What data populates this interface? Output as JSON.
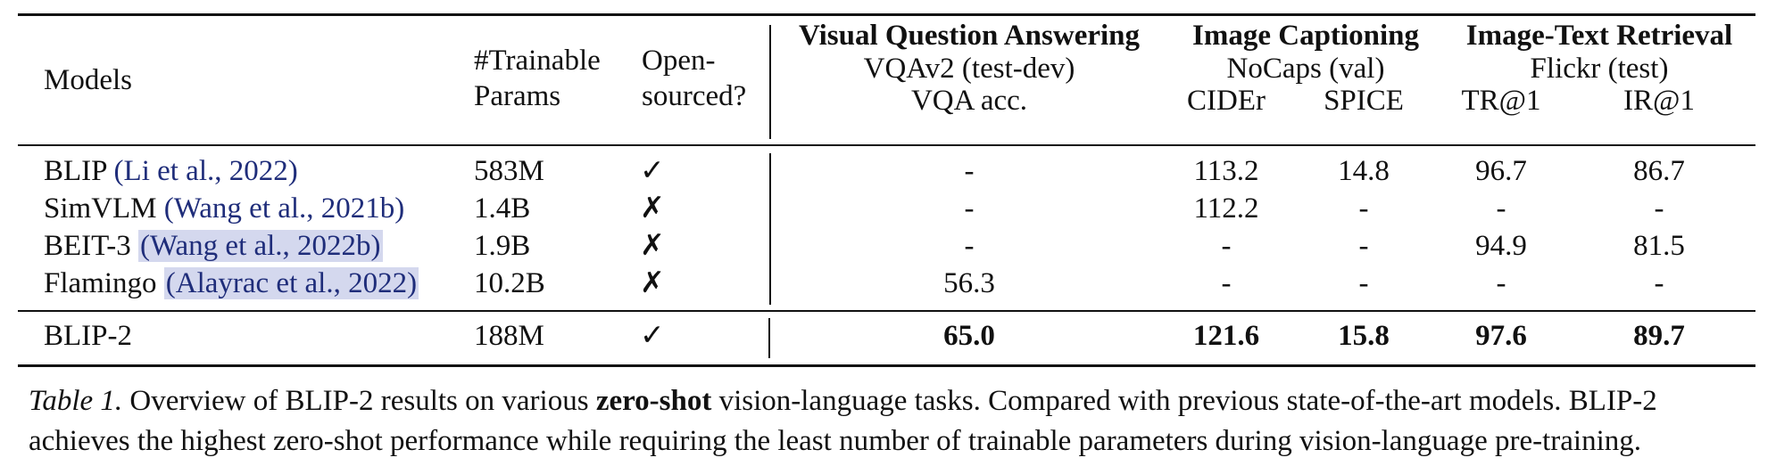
{
  "table": {
    "headers": {
      "models": "Models",
      "params_line1": "#Trainable",
      "params_line2": "Params",
      "open_line1": "Open-",
      "open_line2": "sourced?",
      "vqa_group": "Visual Question Answering",
      "vqa_dataset": "VQAv2 (test-dev)",
      "vqa_metric": "VQA acc.",
      "cap_group": "Image Captioning",
      "cap_dataset": "NoCaps (val)",
      "cap_metric1": "CIDEr",
      "cap_metric2": "SPICE",
      "ret_group": "Image-Text Retrieval",
      "ret_dataset": "Flickr (test)",
      "ret_metric1": "TR@1",
      "ret_metric2": "IR@1"
    },
    "rows": [
      {
        "model": "BLIP",
        "cite": "(Li et al., 2022)",
        "params": "583M",
        "open": "✓",
        "vqa": "-",
        "cider": "113.2",
        "spice": "14.8",
        "tr1": "96.7",
        "ir1": "86.7"
      },
      {
        "model": "SimVLM",
        "cite": "(Wang et al., 2021b)",
        "params": "1.4B",
        "open": "✗",
        "vqa": "-",
        "cider": "112.2",
        "spice": "-",
        "tr1": "-",
        "ir1": "-"
      },
      {
        "model": "BEIT-3",
        "cite": "(Wang et al., 2022b)",
        "params": "1.9B",
        "open": "✗",
        "vqa": "-",
        "cider": "-",
        "spice": "-",
        "tr1": "94.9",
        "ir1": "81.5"
      },
      {
        "model": "Flamingo",
        "cite": "(Alayrac et al., 2022)",
        "params": "10.2B",
        "open": "✗",
        "vqa": "56.3",
        "cider": "-",
        "spice": "-",
        "tr1": "-",
        "ir1": "-"
      },
      {
        "model": "BLIP-2",
        "cite": "",
        "params": "188M",
        "open": "✓",
        "vqa": "65.0",
        "cider": "121.6",
        "spice": "15.8",
        "tr1": "97.6",
        "ir1": "89.7"
      }
    ]
  },
  "caption": {
    "label": "Table 1.",
    "text_before": " Overview of BLIP-2 results on various ",
    "bold": "zero-shot",
    "text_after": " vision-language tasks. Compared with previous state-of-the-art models. BLIP-2 achieves the highest zero-shot performance while requiring the least number of trainable parameters during vision-language pre-training."
  }
}
